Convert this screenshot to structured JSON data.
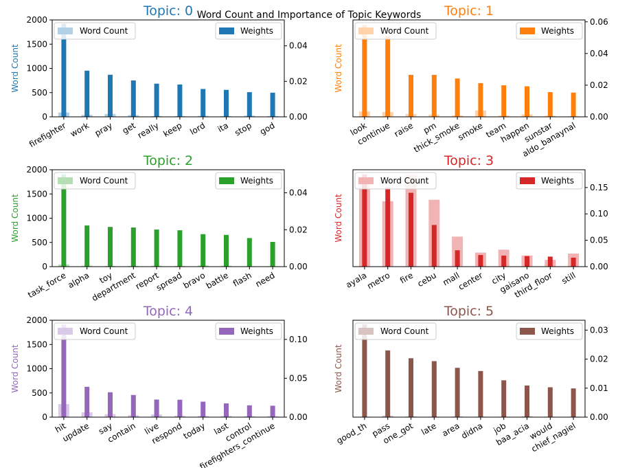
{
  "figure": {
    "suptitle": "Word Count and Importance of Topic Keywords"
  },
  "chart_data": [
    {
      "type": "bar",
      "title": "Topic: 0",
      "color": "#1f77b4",
      "ylabel": "Word Count",
      "ylim_left": [
        0,
        2000
      ],
      "ylim_right": [
        0,
        0.0546
      ],
      "left_ticks": [
        "0",
        "500",
        "1000",
        "1500",
        "2000"
      ],
      "right_ticks": [
        "0.00",
        "0.02",
        "0.04"
      ],
      "categories": [
        "firefighter",
        "work",
        "pray",
        "get",
        "really",
        "keep",
        "lord",
        "ita",
        "stop",
        "god"
      ],
      "series": [
        {
          "name": "Word Count",
          "axis": "left",
          "values": [
            90,
            40,
            60,
            35,
            15,
            15,
            20,
            15,
            25,
            15
          ]
        },
        {
          "name": "Weights",
          "axis": "right",
          "values": [
            0.0525,
            0.026,
            0.0237,
            0.0205,
            0.0187,
            0.0182,
            0.0157,
            0.0152,
            0.0139,
            0.0136
          ]
        }
      ],
      "legend": {
        "word_count": "top-left",
        "weights": "top-right"
      }
    },
    {
      "type": "bar",
      "title": "Topic: 1",
      "color": "#ff7f0e",
      "ylabel": "Word Count",
      "ylim_left": [
        0,
        2000
      ],
      "ylim_right": [
        0,
        0.0612
      ],
      "left_ticks": [],
      "right_ticks": [
        "0.00",
        "0.02",
        "0.04",
        "0.06"
      ],
      "categories": [
        "look",
        "continue",
        "raise",
        "pm",
        "thick_smoke",
        "smoke",
        "team",
        "happen",
        "sunstar",
        "aldo_banaynal"
      ],
      "series": [
        {
          "name": "Word Count",
          "axis": "left",
          "values": [
            110,
            100,
            60,
            45,
            30,
            130,
            25,
            50,
            20,
            15
          ]
        },
        {
          "name": "Weights",
          "axis": "right",
          "values": [
            0.058,
            0.051,
            0.0265,
            0.0265,
            0.0242,
            0.0213,
            0.0199,
            0.0193,
            0.0156,
            0.0153
          ]
        }
      ],
      "legend": {
        "word_count": "top-left",
        "weights": "top-right"
      }
    },
    {
      "type": "bar",
      "title": "Topic: 2",
      "color": "#2ca02c",
      "ylabel": "Word Count",
      "ylim_left": [
        0,
        2000
      ],
      "ylim_right": [
        0,
        0.0525
      ],
      "left_ticks": [
        "0",
        "500",
        "1000",
        "1500",
        "2000"
      ],
      "right_ticks": [
        "0.00",
        "0.02",
        "0.04"
      ],
      "categories": [
        "task_force",
        "alpha",
        "toy",
        "department",
        "report",
        "spread",
        "bravo",
        "battle",
        "flash",
        "need"
      ],
      "series": [
        {
          "name": "Word Count",
          "axis": "left",
          "values": [
            45,
            20,
            15,
            15,
            20,
            15,
            25,
            20,
            10,
            10
          ]
        },
        {
          "name": "Weights",
          "axis": "right",
          "values": [
            0.05,
            0.0223,
            0.0215,
            0.0212,
            0.0201,
            0.0197,
            0.0176,
            0.0172,
            0.0155,
            0.0134
          ]
        }
      ],
      "legend": {
        "word_count": "top-left",
        "weights": "top-right"
      }
    },
    {
      "type": "bar",
      "title": "Topic: 3",
      "color": "#d62728",
      "ylabel": "Word Count",
      "ylim_left": [
        0,
        2000
      ],
      "ylim_right": [
        0,
        0.1837
      ],
      "left_ticks": [],
      "right_ticks": [
        "0.00",
        "0.05",
        "0.10",
        "0.15"
      ],
      "categories": [
        "ayala",
        "metro",
        "fire",
        "cebu",
        "mall",
        "center",
        "city",
        "gaisano",
        "third_floor",
        "still"
      ],
      "series": [
        {
          "name": "Word Count",
          "axis": "left",
          "values": [
            1700,
            1350,
            1900,
            1380,
            620,
            290,
            350,
            230,
            140,
            270
          ]
        },
        {
          "name": "Weights",
          "axis": "right",
          "values": [
            0.175,
            0.15,
            0.14,
            0.079,
            0.031,
            0.022,
            0.021,
            0.02,
            0.019,
            0.017
          ]
        }
      ],
      "legend": {
        "word_count": "top-left",
        "weights": "top-right"
      }
    },
    {
      "type": "bar",
      "title": "Topic: 4",
      "color": "#9467bd",
      "ylabel": "Word Count",
      "ylim_left": [
        0,
        2000
      ],
      "ylim_right": [
        0,
        0.1246
      ],
      "left_ticks": [
        "0",
        "500",
        "1000",
        "1500",
        "2000"
      ],
      "right_ticks": [
        "0.00",
        "0.05",
        "0.10"
      ],
      "categories": [
        "hit",
        "update",
        "say",
        "contain",
        "live",
        "respond",
        "today",
        "last",
        "control",
        "firefighters_continue"
      ],
      "series": [
        {
          "name": "Word Count",
          "axis": "left",
          "values": [
            270,
            100,
            60,
            40,
            55,
            30,
            25,
            25,
            20,
            20
          ]
        },
        {
          "name": "Weights",
          "axis": "right",
          "values": [
            0.119,
            0.039,
            0.032,
            0.0285,
            0.0226,
            0.0224,
            0.0199,
            0.0177,
            0.0152,
            0.0147
          ]
        }
      ],
      "legend": {
        "word_count": "top-left",
        "weights": "top-right"
      }
    },
    {
      "type": "bar",
      "title": "Topic: 5",
      "color": "#8c564b",
      "ylabel": "Word Count",
      "ylim_left": [
        0,
        2000
      ],
      "ylim_right": [
        0,
        0.0334
      ],
      "left_ticks": [],
      "right_ticks": [
        "0.00",
        "0.01",
        "0.02",
        "0.03"
      ],
      "categories": [
        "good_th",
        "pass",
        "one_got",
        "late",
        "area",
        "didna",
        "job",
        "baa_acia",
        "would",
        "chief_nagiel"
      ],
      "series": [
        {
          "name": "Word Count",
          "axis": "left",
          "values": [
            10,
            30,
            15,
            10,
            15,
            10,
            10,
            20,
            10,
            10
          ]
        },
        {
          "name": "Weights",
          "axis": "right",
          "values": [
            0.032,
            0.023,
            0.0203,
            0.0193,
            0.017,
            0.0159,
            0.0127,
            0.0109,
            0.0103,
            0.0099
          ]
        }
      ],
      "legend": {
        "word_count": "top-left",
        "weights": "top-right"
      }
    }
  ]
}
